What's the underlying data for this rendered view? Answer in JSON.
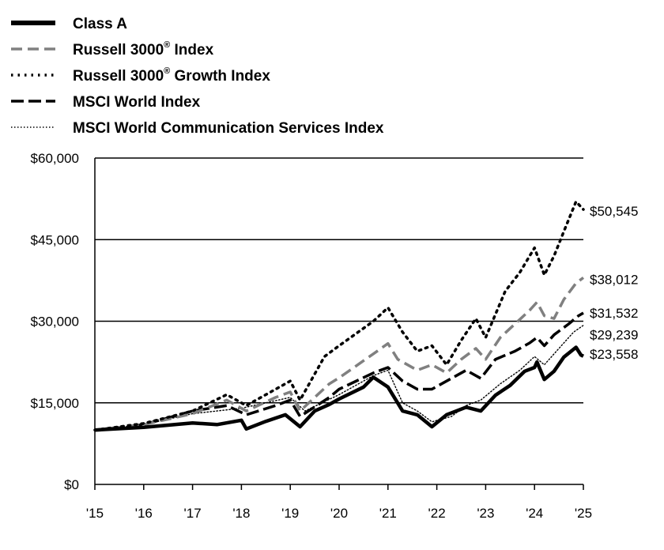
{
  "chart_data": {
    "type": "line",
    "title": "",
    "xlabel": "",
    "ylabel": "",
    "xlim": [
      2015,
      2025
    ],
    "ylim": [
      0,
      60000
    ],
    "grid": "horizontal",
    "legend_position": "top-left",
    "x_tick_labels": [
      "'15",
      "'16",
      "'17",
      "'18",
      "'19",
      "'20",
      "'21",
      "'22",
      "'23",
      "'24",
      "'25"
    ],
    "y_tick_labels": [
      "$0",
      "$15,000",
      "$30,000",
      "$45,000",
      "$60,000"
    ],
    "y_ticks": [
      0,
      15000,
      30000,
      45000,
      60000
    ],
    "series": [
      {
        "name": "Class A",
        "superscript": "",
        "name_suffix": "",
        "style": "solid-thick",
        "color": "#000000",
        "end_label": "$23,558",
        "x": [
          2015,
          2016,
          2017,
          2017.5,
          2018,
          2018.1,
          2018.5,
          2018.9,
          2019.2,
          2019.5,
          2019.8,
          2020,
          2020.5,
          2020.7,
          2021,
          2021.3,
          2021.6,
          2021.9,
          2022.2,
          2022.6,
          2022.9,
          2023.2,
          2023.5,
          2023.8,
          2024,
          2024.05,
          2024.2,
          2024.4,
          2024.6,
          2024.85,
          2024.95,
          2025
        ],
        "y": [
          10000,
          10500,
          11300,
          11000,
          11800,
          10200,
          11600,
          12800,
          10600,
          13500,
          14700,
          15700,
          17900,
          19700,
          17900,
          13500,
          12800,
          10600,
          12800,
          14200,
          13500,
          16400,
          18200,
          20800,
          21500,
          22500,
          19300,
          20800,
          23400,
          25200,
          23800,
          23558
        ]
      },
      {
        "name": "Russell 3000",
        "superscript": "®",
        "name_suffix": " Index",
        "style": "dashed-gray",
        "color": "#808080",
        "end_label": "$38,012",
        "x": [
          2015,
          2016,
          2017,
          2017.7,
          2018.1,
          2018.7,
          2019,
          2019.2,
          2019.8,
          2020,
          2020.7,
          2021,
          2021.2,
          2021.6,
          2021.9,
          2022.2,
          2022.5,
          2022.8,
          2023,
          2023.3,
          2023.6,
          2023.9,
          2024.05,
          2024.2,
          2024.4,
          2024.6,
          2024.85,
          2025
        ],
        "y": [
          10000,
          11000,
          13000,
          15500,
          13500,
          16000,
          17000,
          13500,
          18500,
          19600,
          24000,
          25900,
          23000,
          21000,
          22000,
          20500,
          23000,
          25000,
          23000,
          27000,
          29500,
          32000,
          33500,
          31000,
          30500,
          34000,
          37000,
          38012
        ]
      },
      {
        "name": "Russell 3000",
        "superscript": "®",
        "name_suffix": " Growth Index",
        "style": "dotted-thick",
        "color": "#000000",
        "end_label": "$50,545",
        "x": [
          2015,
          2016,
          2017,
          2017.7,
          2018.1,
          2018.7,
          2019,
          2019.2,
          2019.7,
          2020,
          2020.7,
          2021,
          2021.3,
          2021.6,
          2021.9,
          2022.2,
          2022.5,
          2022.8,
          2023,
          2023.4,
          2023.7,
          2024,
          2024.2,
          2024.4,
          2024.6,
          2024.85,
          2025
        ],
        "y": [
          10000,
          11200,
          13500,
          16500,
          14500,
          17500,
          19000,
          15500,
          23500,
          25500,
          30000,
          32500,
          28000,
          24500,
          25500,
          22000,
          26500,
          30500,
          27000,
          35500,
          39000,
          43500,
          38500,
          42000,
          46500,
          52000,
          50545
        ]
      },
      {
        "name": "MSCI World Index",
        "superscript": "",
        "name_suffix": "",
        "style": "dashed-black",
        "color": "#000000",
        "end_label": "$31,532",
        "x": [
          2015,
          2016,
          2017,
          2017.7,
          2018.1,
          2018.7,
          2019,
          2019.2,
          2019.8,
          2020,
          2020.7,
          2021,
          2021.3,
          2021.6,
          2021.9,
          2022.2,
          2022.6,
          2022.9,
          2023.2,
          2023.6,
          2023.9,
          2024.05,
          2024.2,
          2024.4,
          2024.7,
          2024.9,
          2025
        ],
        "y": [
          10000,
          11000,
          13500,
          14500,
          12800,
          14500,
          15500,
          12500,
          16000,
          17500,
          20500,
          21500,
          19000,
          17500,
          17500,
          19000,
          21000,
          19500,
          23000,
          24500,
          26000,
          27000,
          25500,
          27500,
          29500,
          31000,
          31532
        ]
      },
      {
        "name": "MSCI World Communication Services Index",
        "superscript": "",
        "name_suffix": "",
        "style": "dotted-thin",
        "color": "#000000",
        "end_label": "$29,239",
        "x": [
          2015,
          2016,
          2017,
          2018,
          2019,
          2019.3,
          2020,
          2020.7,
          2021,
          2021.3,
          2021.6,
          2021.9,
          2022.3,
          2022.6,
          2022.9,
          2023.3,
          2023.7,
          2024,
          2024.2,
          2024.5,
          2024.8,
          2025
        ],
        "y": [
          10000,
          11000,
          13000,
          14000,
          16000,
          13500,
          16500,
          20000,
          21000,
          15000,
          13500,
          11500,
          12500,
          14500,
          15500,
          18500,
          21000,
          23500,
          22000,
          25000,
          28000,
          29239
        ]
      }
    ]
  }
}
